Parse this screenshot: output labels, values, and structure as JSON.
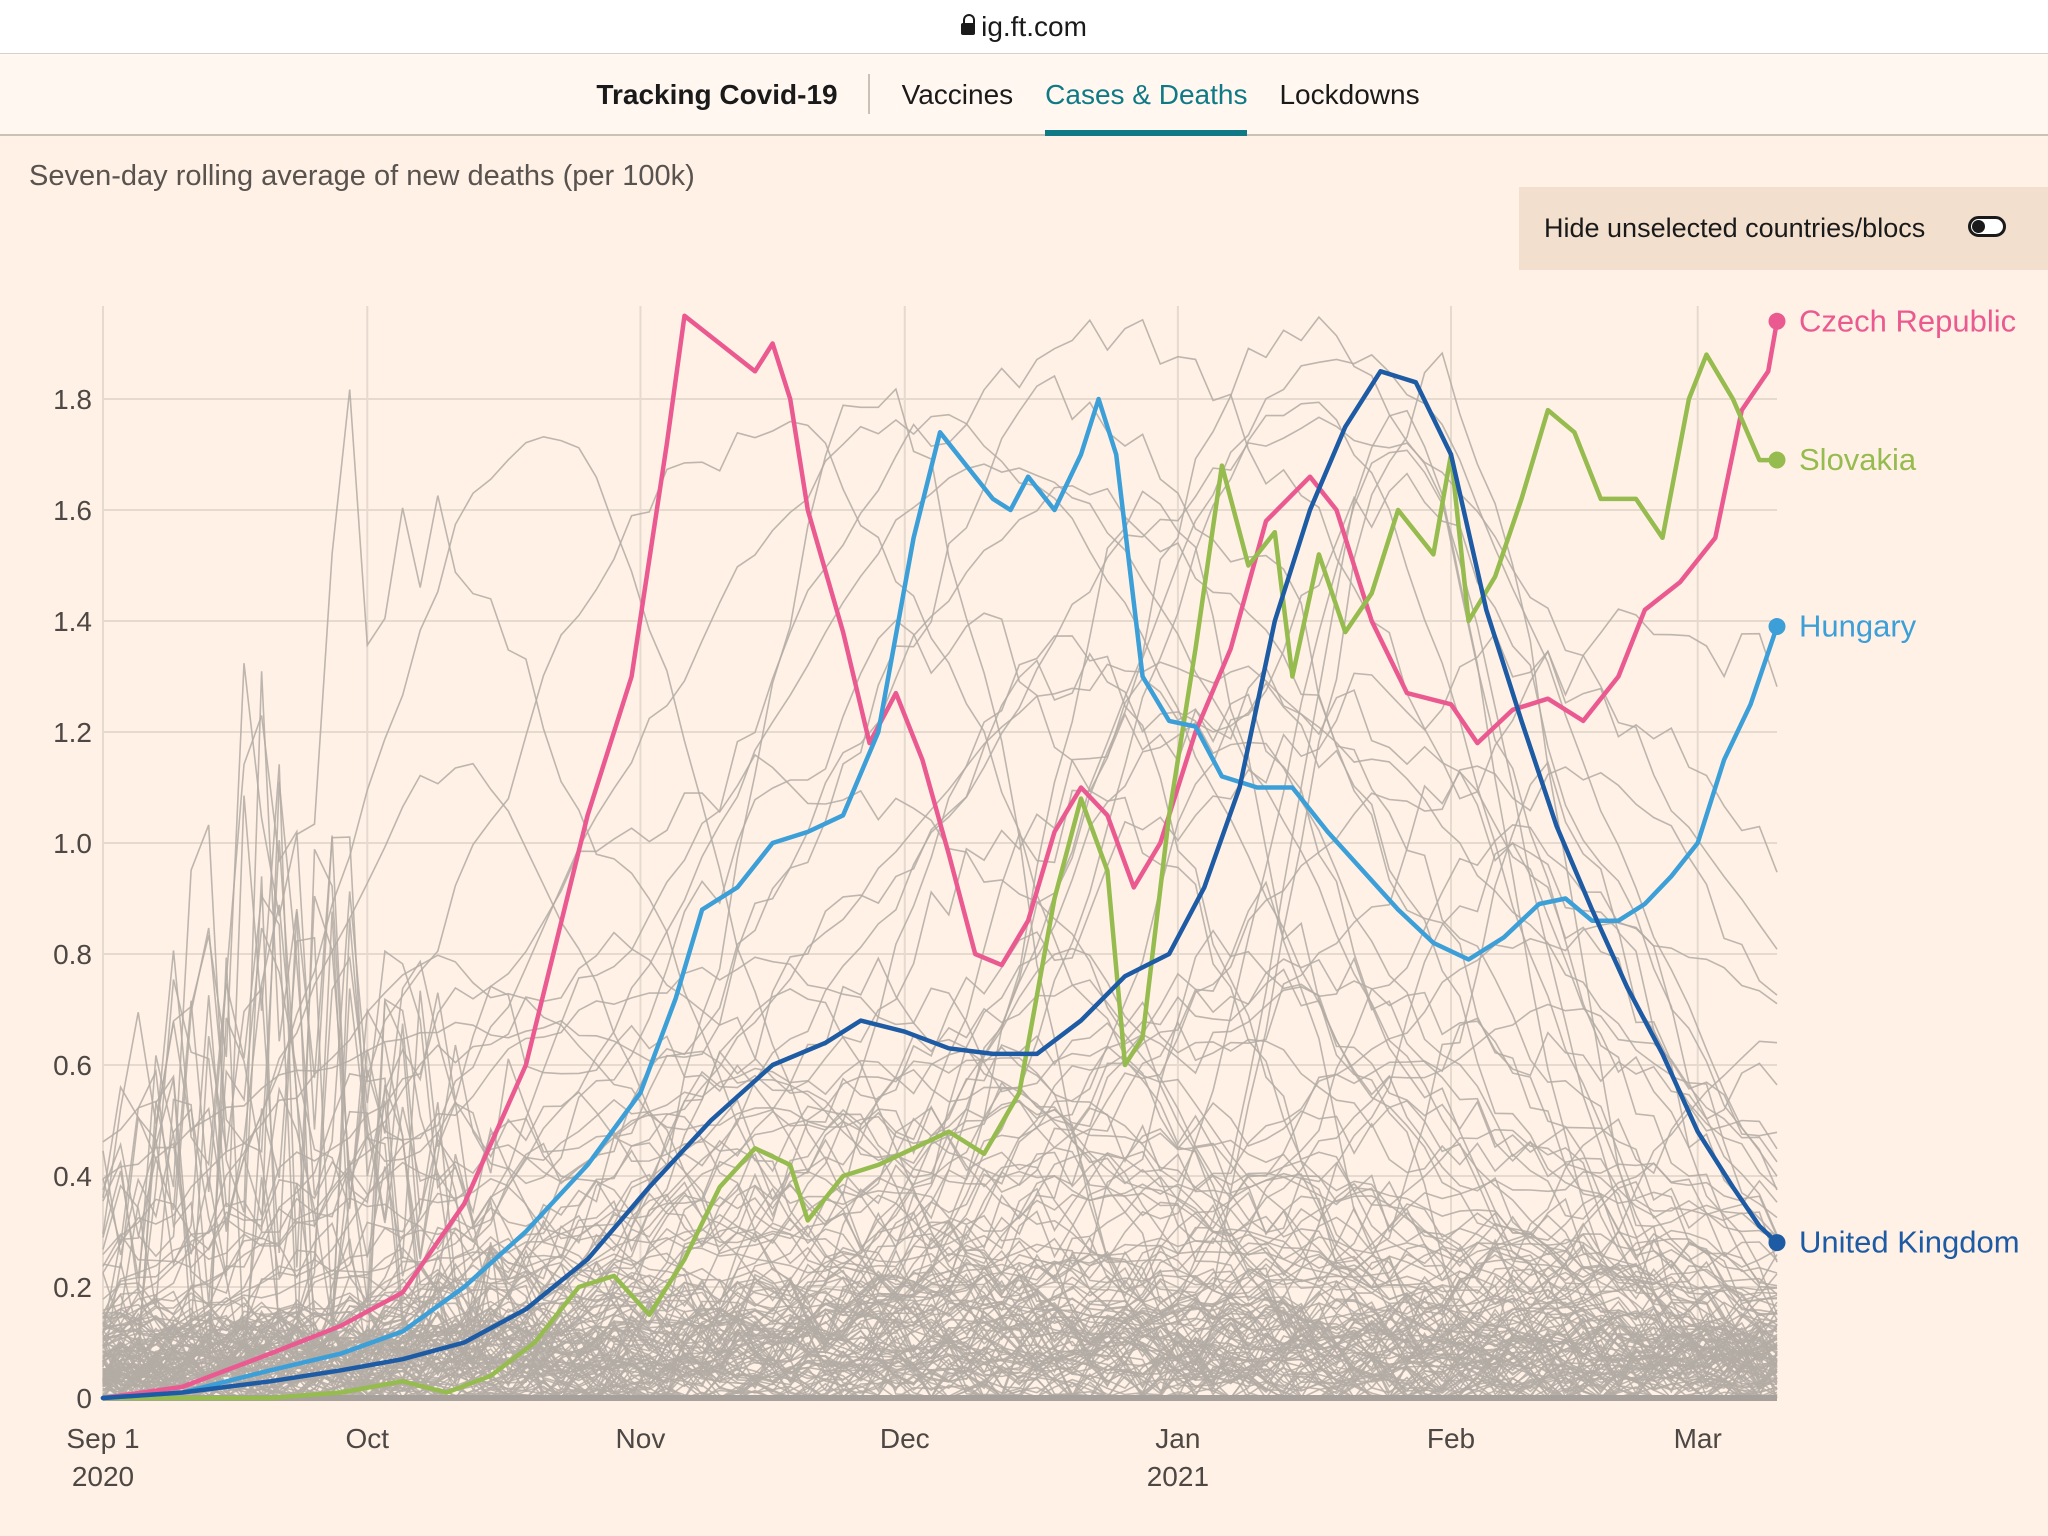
{
  "browser": {
    "url": "ig.ft.com"
  },
  "nav": {
    "brand": "Tracking Covid-19",
    "links": [
      {
        "label": "Vaccines",
        "active": false
      },
      {
        "label": "Cases & Deaths",
        "active": true
      },
      {
        "label": "Lockdowns",
        "active": false
      }
    ]
  },
  "subtitle": "Seven-day rolling average of new deaths (per 100k)",
  "toggle": {
    "label": "Hide unselected countries/blocs",
    "on": false
  },
  "colors": {
    "background": "#fff1e5",
    "grid": "#e6d9ce",
    "background_lines": "#b3aba5",
    "accent": "#0f7a86"
  },
  "chart_data": {
    "type": "line",
    "title": "",
    "ylabel": "",
    "ylim": [
      0,
      1.97
    ],
    "y_ticks": [
      0,
      0.2,
      0.4,
      0.6,
      0.8,
      1.0,
      1.2,
      1.4,
      1.6,
      1.8
    ],
    "y_tick_labels": [
      "0",
      "0.2",
      "0.4",
      "0.6",
      "0.8",
      "1.0",
      "1.2",
      "1.4",
      "1.6",
      "1.8"
    ],
    "xlim": [
      "2020-09-01",
      "2021-03-10"
    ],
    "x_ticks": [
      {
        "date": "2020-09-01",
        "label": "Sep 1",
        "year": "2020"
      },
      {
        "date": "2020-10-01",
        "label": "Oct",
        "year": ""
      },
      {
        "date": "2020-11-01",
        "label": "Nov",
        "year": ""
      },
      {
        "date": "2020-12-01",
        "label": "Dec",
        "year": ""
      },
      {
        "date": "2021-01-01",
        "label": "Jan",
        "year": "2021"
      },
      {
        "date": "2021-02-01",
        "label": "Feb",
        "year": ""
      },
      {
        "date": "2021-03-01",
        "label": "Mar",
        "year": ""
      }
    ],
    "grid": true,
    "legend": "direct labels at right end of highlighted lines",
    "background_series_note": "thin grey lines for all other countries/blocs",
    "series": [
      {
        "name": "Czech Republic",
        "color": "#ea5a91",
        "points": [
          [
            "2020-09-01",
            0.0
          ],
          [
            "2020-09-10",
            0.02
          ],
          [
            "2020-09-20",
            0.08
          ],
          [
            "2020-09-28",
            0.13
          ],
          [
            "2020-10-05",
            0.19
          ],
          [
            "2020-10-12",
            0.35
          ],
          [
            "2020-10-19",
            0.6
          ],
          [
            "2020-10-26",
            1.05
          ],
          [
            "2020-10-31",
            1.3
          ],
          [
            "2020-11-04",
            1.72
          ],
          [
            "2020-11-06",
            1.95
          ],
          [
            "2020-11-10",
            1.9
          ],
          [
            "2020-11-14",
            1.85
          ],
          [
            "2020-11-16",
            1.9
          ],
          [
            "2020-11-18",
            1.8
          ],
          [
            "2020-11-20",
            1.6
          ],
          [
            "2020-11-24",
            1.38
          ],
          [
            "2020-11-27",
            1.18
          ],
          [
            "2020-11-30",
            1.27
          ],
          [
            "2020-12-03",
            1.15
          ],
          [
            "2020-12-06",
            0.98
          ],
          [
            "2020-12-09",
            0.8
          ],
          [
            "2020-12-12",
            0.78
          ],
          [
            "2020-12-15",
            0.86
          ],
          [
            "2020-12-18",
            1.02
          ],
          [
            "2020-12-21",
            1.1
          ],
          [
            "2020-12-24",
            1.05
          ],
          [
            "2020-12-27",
            0.92
          ],
          [
            "2020-12-30",
            1.0
          ],
          [
            "2021-01-03",
            1.2
          ],
          [
            "2021-01-07",
            1.35
          ],
          [
            "2021-01-11",
            1.58
          ],
          [
            "2021-01-16",
            1.66
          ],
          [
            "2021-01-19",
            1.6
          ],
          [
            "2021-01-23",
            1.4
          ],
          [
            "2021-01-27",
            1.27
          ],
          [
            "2021-02-01",
            1.25
          ],
          [
            "2021-02-04",
            1.18
          ],
          [
            "2021-02-08",
            1.24
          ],
          [
            "2021-02-12",
            1.26
          ],
          [
            "2021-02-16",
            1.22
          ],
          [
            "2021-02-20",
            1.3
          ],
          [
            "2021-02-23",
            1.42
          ],
          [
            "2021-02-27",
            1.47
          ],
          [
            "2021-03-03",
            1.55
          ],
          [
            "2021-03-06",
            1.78
          ],
          [
            "2021-03-09",
            1.85
          ],
          [
            "2021-03-10",
            1.94
          ]
        ]
      },
      {
        "name": "Slovakia",
        "color": "#96bb4e",
        "points": [
          [
            "2020-09-01",
            0.0
          ],
          [
            "2020-09-10",
            0.0
          ],
          [
            "2020-09-20",
            0.0
          ],
          [
            "2020-09-28",
            0.01
          ],
          [
            "2020-10-05",
            0.03
          ],
          [
            "2020-10-10",
            0.01
          ],
          [
            "2020-10-15",
            0.04
          ],
          [
            "2020-10-20",
            0.1
          ],
          [
            "2020-10-25",
            0.2
          ],
          [
            "2020-10-29",
            0.22
          ],
          [
            "2020-11-02",
            0.15
          ],
          [
            "2020-11-06",
            0.25
          ],
          [
            "2020-11-10",
            0.38
          ],
          [
            "2020-11-14",
            0.45
          ],
          [
            "2020-11-18",
            0.42
          ],
          [
            "2020-11-20",
            0.32
          ],
          [
            "2020-11-24",
            0.4
          ],
          [
            "2020-11-28",
            0.42
          ],
          [
            "2020-12-02",
            0.45
          ],
          [
            "2020-12-06",
            0.48
          ],
          [
            "2020-12-10",
            0.44
          ],
          [
            "2020-12-14",
            0.55
          ],
          [
            "2020-12-18",
            0.9
          ],
          [
            "2020-12-21",
            1.08
          ],
          [
            "2020-12-24",
            0.95
          ],
          [
            "2020-12-26",
            0.6
          ],
          [
            "2020-12-28",
            0.65
          ],
          [
            "2020-12-31",
            1.05
          ],
          [
            "2021-01-03",
            1.35
          ],
          [
            "2021-01-06",
            1.68
          ],
          [
            "2021-01-09",
            1.5
          ],
          [
            "2021-01-12",
            1.56
          ],
          [
            "2021-01-14",
            1.3
          ],
          [
            "2021-01-17",
            1.52
          ],
          [
            "2021-01-20",
            1.38
          ],
          [
            "2021-01-23",
            1.45
          ],
          [
            "2021-01-26",
            1.6
          ],
          [
            "2021-01-30",
            1.52
          ],
          [
            "2021-02-01",
            1.7
          ],
          [
            "2021-02-03",
            1.4
          ],
          [
            "2021-02-06",
            1.48
          ],
          [
            "2021-02-09",
            1.62
          ],
          [
            "2021-02-12",
            1.78
          ],
          [
            "2021-02-15",
            1.74
          ],
          [
            "2021-02-18",
            1.62
          ],
          [
            "2021-02-22",
            1.62
          ],
          [
            "2021-02-25",
            1.55
          ],
          [
            "2021-02-28",
            1.8
          ],
          [
            "2021-03-02",
            1.88
          ],
          [
            "2021-03-05",
            1.8
          ],
          [
            "2021-03-08",
            1.69
          ],
          [
            "2021-03-10",
            1.69
          ]
        ]
      },
      {
        "name": "Hungary",
        "color": "#3c9fd8",
        "points": [
          [
            "2020-09-01",
            0.0
          ],
          [
            "2020-09-10",
            0.01
          ],
          [
            "2020-09-20",
            0.05
          ],
          [
            "2020-09-28",
            0.08
          ],
          [
            "2020-10-05",
            0.12
          ],
          [
            "2020-10-12",
            0.2
          ],
          [
            "2020-10-19",
            0.3
          ],
          [
            "2020-10-26",
            0.42
          ],
          [
            "2020-11-01",
            0.55
          ],
          [
            "2020-11-05",
            0.72
          ],
          [
            "2020-11-08",
            0.88
          ],
          [
            "2020-11-12",
            0.92
          ],
          [
            "2020-11-16",
            1.0
          ],
          [
            "2020-11-20",
            1.02
          ],
          [
            "2020-11-24",
            1.05
          ],
          [
            "2020-11-28",
            1.2
          ],
          [
            "2020-12-02",
            1.55
          ],
          [
            "2020-12-05",
            1.74
          ],
          [
            "2020-12-08",
            1.68
          ],
          [
            "2020-12-11",
            1.62
          ],
          [
            "2020-12-13",
            1.6
          ],
          [
            "2020-12-15",
            1.66
          ],
          [
            "2020-12-18",
            1.6
          ],
          [
            "2020-12-21",
            1.7
          ],
          [
            "2020-12-23",
            1.8
          ],
          [
            "2020-12-25",
            1.7
          ],
          [
            "2020-12-28",
            1.3
          ],
          [
            "2020-12-31",
            1.22
          ],
          [
            "2021-01-03",
            1.21
          ],
          [
            "2021-01-06",
            1.12
          ],
          [
            "2021-01-10",
            1.1
          ],
          [
            "2021-01-14",
            1.1
          ],
          [
            "2021-01-18",
            1.02
          ],
          [
            "2021-01-22",
            0.95
          ],
          [
            "2021-01-26",
            0.88
          ],
          [
            "2021-01-30",
            0.82
          ],
          [
            "2021-02-03",
            0.79
          ],
          [
            "2021-02-07",
            0.83
          ],
          [
            "2021-02-11",
            0.89
          ],
          [
            "2021-02-14",
            0.9
          ],
          [
            "2021-02-17",
            0.86
          ],
          [
            "2021-02-20",
            0.86
          ],
          [
            "2021-02-23",
            0.89
          ],
          [
            "2021-02-26",
            0.94
          ],
          [
            "2021-03-01",
            1.0
          ],
          [
            "2021-03-04",
            1.15
          ],
          [
            "2021-03-07",
            1.25
          ],
          [
            "2021-03-10",
            1.39
          ]
        ]
      },
      {
        "name": "United Kingdom",
        "color": "#1d5ba4",
        "points": [
          [
            "2020-09-01",
            0.0
          ],
          [
            "2020-09-10",
            0.01
          ],
          [
            "2020-09-20",
            0.03
          ],
          [
            "2020-09-28",
            0.05
          ],
          [
            "2020-10-05",
            0.07
          ],
          [
            "2020-10-12",
            0.1
          ],
          [
            "2020-10-19",
            0.16
          ],
          [
            "2020-10-26",
            0.25
          ],
          [
            "2020-11-02",
            0.38
          ],
          [
            "2020-11-09",
            0.5
          ],
          [
            "2020-11-16",
            0.6
          ],
          [
            "2020-11-22",
            0.64
          ],
          [
            "2020-11-26",
            0.68
          ],
          [
            "2020-12-01",
            0.66
          ],
          [
            "2020-12-06",
            0.63
          ],
          [
            "2020-12-11",
            0.62
          ],
          [
            "2020-12-16",
            0.62
          ],
          [
            "2020-12-21",
            0.68
          ],
          [
            "2020-12-26",
            0.76
          ],
          [
            "2020-12-31",
            0.8
          ],
          [
            "2021-01-04",
            0.92
          ],
          [
            "2021-01-08",
            1.1
          ],
          [
            "2021-01-12",
            1.4
          ],
          [
            "2021-01-16",
            1.6
          ],
          [
            "2021-01-20",
            1.75
          ],
          [
            "2021-01-24",
            1.85
          ],
          [
            "2021-01-28",
            1.83
          ],
          [
            "2021-02-01",
            1.7
          ],
          [
            "2021-02-05",
            1.42
          ],
          [
            "2021-02-09",
            1.22
          ],
          [
            "2021-02-13",
            1.03
          ],
          [
            "2021-02-17",
            0.88
          ],
          [
            "2021-02-21",
            0.74
          ],
          [
            "2021-02-25",
            0.62
          ],
          [
            "2021-03-01",
            0.48
          ],
          [
            "2021-03-05",
            0.38
          ],
          [
            "2021-03-08",
            0.31
          ],
          [
            "2021-03-10",
            0.28
          ]
        ]
      }
    ]
  }
}
